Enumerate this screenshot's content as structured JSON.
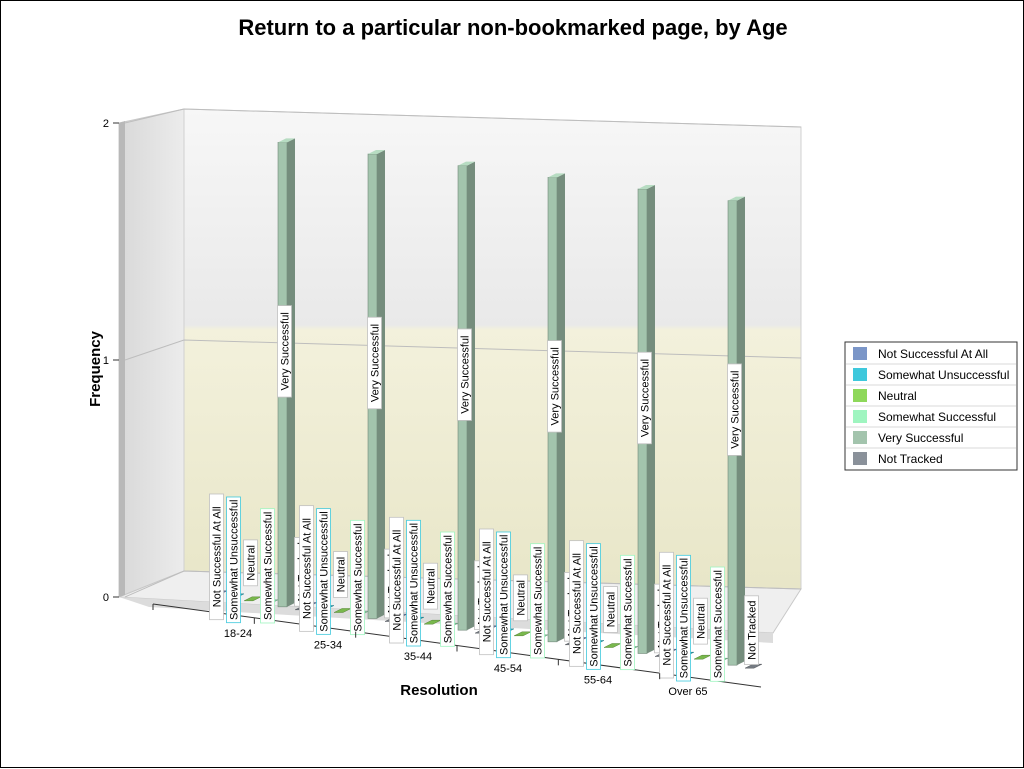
{
  "chart_data": {
    "type": "bar",
    "title": "Return to a particular non-bookmarked page, by Age",
    "xlabel": "Resolution",
    "ylabel": "Frequency",
    "ylim": [
      0,
      2
    ],
    "yticks": [
      0,
      1,
      2
    ],
    "categories": [
      "18-24",
      "25-34",
      "35-44",
      "45-54",
      "55-64",
      "Over 65"
    ],
    "series": [
      {
        "name": "Not Successful At All",
        "values": [
          0,
          0,
          0,
          0,
          0,
          0
        ],
        "color": "#7b96c8"
      },
      {
        "name": "Somewhat Unsuccessful",
        "values": [
          0,
          0,
          0,
          0,
          0,
          0
        ],
        "color": "#3ec8dc"
      },
      {
        "name": "Neutral",
        "values": [
          0,
          0,
          0,
          0,
          0,
          0
        ],
        "color": "#8ed85a"
      },
      {
        "name": "Somewhat Successful",
        "values": [
          0,
          0,
          0,
          0,
          0,
          0
        ],
        "color": "#9ff5c0"
      },
      {
        "name": "Very Successful",
        "values": [
          2,
          2,
          2,
          2,
          2,
          2
        ],
        "color": "#a3c4ad"
      },
      {
        "name": "Not Tracked",
        "values": [
          0,
          0,
          0,
          0,
          0,
          0
        ],
        "color": "#8a919a"
      }
    ],
    "legend_position": "right",
    "grid": true,
    "style": "3d"
  }
}
